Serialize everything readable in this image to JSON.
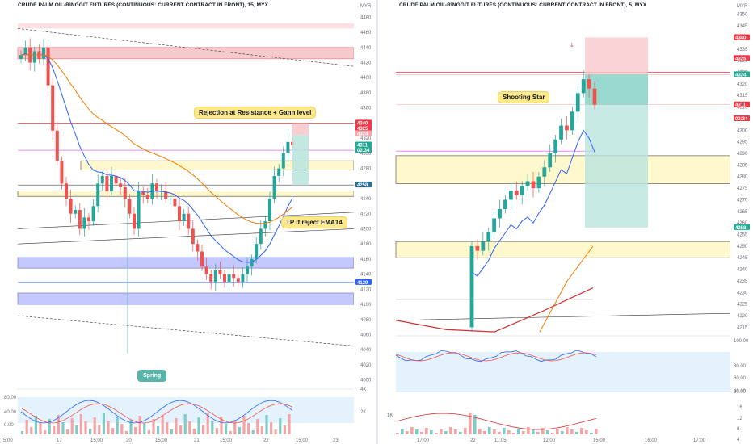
{
  "left": {
    "title": "CRUDE PALM OIL-RINGGIT FUTURES (CONTINUOUS: CURRENT CONTRACT IN FRONT), 15, MYX",
    "currency": "MYR",
    "price_ticks": [
      "4480",
      "4460",
      "4440",
      "4420",
      "4400",
      "4380",
      "4360",
      "4340",
      "4320",
      "4300",
      "4280",
      "4260",
      "4240",
      "4220",
      "4200",
      "4180",
      "4160",
      "4140",
      "4120",
      "4100",
      "4080",
      "4060",
      "4040",
      "4020",
      "4000"
    ],
    "price_tags": [
      {
        "label": "4340",
        "color": "#f23645"
      },
      {
        "label": "4325",
        "color": "#f23645"
      },
      {
        "label": "4324",
        "color": "#f7a7ad"
      },
      {
        "label": "4311",
        "color": "#22ab94"
      },
      {
        "label": "02:34",
        "color": "#22ab94"
      },
      {
        "label": "4258",
        "color": "#2a6f97"
      },
      {
        "label": "4129",
        "color": "#2962ff"
      }
    ],
    "time_ticks": [
      "5:00",
      "17",
      "15:00",
      "20",
      "15:00",
      "21",
      "15:00",
      "22",
      "15:00",
      "23"
    ],
    "osc_ticks": [
      "80.00",
      "40.00",
      "0.00"
    ],
    "vol_ticks": [
      "4K",
      "2K"
    ],
    "annotations": {
      "rejection": "Rejection at Resistance + Gann level",
      "tp": "TP if reject EMA14",
      "spring": "Spring"
    }
  },
  "right": {
    "title": "CRUDE PALM OIL-RINGGIT FUTURES (CONTINUOUS: CURRENT CONTRACT IN FRONT), 5, MYX",
    "currency": "MYR",
    "price_ticks": [
      "4350",
      "4345",
      "4340",
      "4335",
      "4330",
      "4325",
      "4320",
      "4315",
      "4310",
      "4305",
      "4300",
      "4295",
      "4290",
      "4285",
      "4280",
      "4275",
      "4270",
      "4265",
      "4260",
      "4255",
      "4250",
      "4245",
      "4240",
      "4235",
      "4230",
      "4225",
      "4220",
      "4215"
    ],
    "price_tags": [
      {
        "label": "4340",
        "color": "#f23645"
      },
      {
        "label": "4325",
        "color": "#f23645"
      },
      {
        "label": "4324",
        "color": "#22ab94"
      },
      {
        "label": "4311",
        "color": "#f23645"
      },
      {
        "label": "02:34",
        "color": "#f23645"
      },
      {
        "label": "4258",
        "color": "#22ab94"
      }
    ],
    "time_ticks": [
      "17:00",
      "22",
      "11:05",
      "12:00",
      "15:00",
      "16:00",
      "17:00"
    ],
    "osc_ticks": [
      "100.00",
      "80.00",
      "60.00",
      "40.00",
      "20.00"
    ],
    "vol_ticks": [
      "1K",
      "16",
      "12",
      "8",
      "4"
    ],
    "annotations": {
      "shooting_star": "Shooting Star"
    }
  },
  "colors": {
    "up": "#26a69a",
    "down": "#ef5350",
    "ema_fast": "#2962ff",
    "ema_slow": "#f57c00",
    "resistance": "#f8c9cc",
    "support_yellow": "#fff8cc",
    "support_blue": "#c5c8ff",
    "osc_band": "#e3f2fd"
  },
  "chart_data": [
    {
      "type": "candlestick",
      "name": "left-15min",
      "ylim": [
        3990,
        4490
      ],
      "candles_close_approx": [
        4430,
        4440,
        4420,
        4435,
        4425,
        4440,
        4390,
        4330,
        4290,
        4260,
        4240,
        4220,
        4225,
        4200,
        4215,
        4210,
        4230,
        4260,
        4270,
        4250,
        4270,
        4260,
        4255,
        4240,
        4220,
        4200,
        4250,
        4245,
        4240,
        4260,
        4250,
        4250,
        4240,
        4240,
        4230,
        4210,
        4220,
        4200,
        4180,
        4170,
        4150,
        4140,
        4130,
        4145,
        4140,
        4130,
        4140,
        4135,
        4130,
        4140,
        4150,
        4160,
        4180,
        4200,
        4210,
        4240,
        4270,
        4280,
        4300,
        4315,
        4311
      ]
    },
    {
      "type": "candlestick",
      "name": "right-5min",
      "ylim": [
        4212,
        4352
      ],
      "candles_close_approx": [
        4250,
        4248,
        4252,
        4256,
        4262,
        4266,
        4270,
        4274,
        4272,
        4276,
        4278,
        4275,
        4280,
        4284,
        4290,
        4296,
        4302,
        4300,
        4308,
        4316,
        4322,
        4318,
        4311
      ]
    }
  ]
}
